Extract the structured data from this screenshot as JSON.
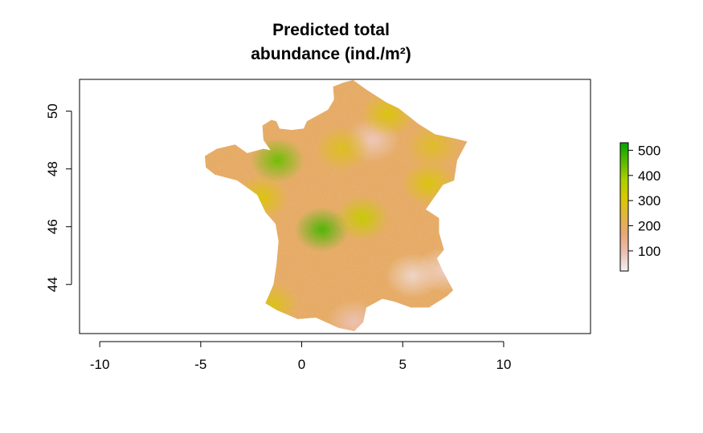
{
  "title_line1": "Predicted total",
  "title_line2": "abundance (ind./m²)",
  "chart_data": {
    "type": "heatmap",
    "title": "Predicted total abundance (ind./m²)",
    "xlabel": "",
    "ylabel": "",
    "xlim": [
      -11,
      14.3
    ],
    "ylim": [
      42.3,
      51.1
    ],
    "x_ticks": [
      -10,
      -5,
      0,
      5,
      10
    ],
    "x_tick_labels": [
      "-10",
      "-5",
      "0",
      "5",
      "10"
    ],
    "y_ticks": [
      44,
      46,
      48,
      50
    ],
    "y_tick_labels": [
      "44",
      "46",
      "48",
      "50"
    ],
    "colorbar": {
      "range": [
        20,
        530
      ],
      "ticks": [
        100,
        200,
        300,
        400,
        500
      ],
      "tick_labels": [
        "100",
        "200",
        "300",
        "400",
        "500"
      ],
      "colors": [
        "#f2f2f2",
        "#edc0b1",
        "#e8a87a",
        "#e2b440",
        "#d8c800",
        "#a8d000",
        "#58b800",
        "#00a600"
      ]
    },
    "region": "France (mainland)",
    "hotspots": [
      {
        "lon": -1.2,
        "lat": 48.3,
        "value": 440
      },
      {
        "lon": 1.0,
        "lat": 45.9,
        "value": 470
      },
      {
        "lon": 3.0,
        "lat": 46.3,
        "value": 340
      },
      {
        "lon": 4.3,
        "lat": 49.9,
        "value": 300
      },
      {
        "lon": 6.3,
        "lat": 47.5,
        "value": 300
      },
      {
        "lon": 6.5,
        "lat": 48.8,
        "value": 270
      },
      {
        "lon": -1.5,
        "lat": 43.3,
        "value": 290
      },
      {
        "lon": 2.0,
        "lat": 48.7,
        "value": 280
      },
      {
        "lon": -2.0,
        "lat": 47.0,
        "value": 300
      }
    ],
    "coldspots": [
      {
        "lon": 3.5,
        "lat": 49.0,
        "value": 80
      },
      {
        "lon": 5.5,
        "lat": 44.3,
        "value": 60
      },
      {
        "lon": 7.0,
        "lat": 44.5,
        "value": 70
      },
      {
        "lon": 2.6,
        "lat": 42.7,
        "value": 90
      }
    ],
    "base_value": 190
  }
}
